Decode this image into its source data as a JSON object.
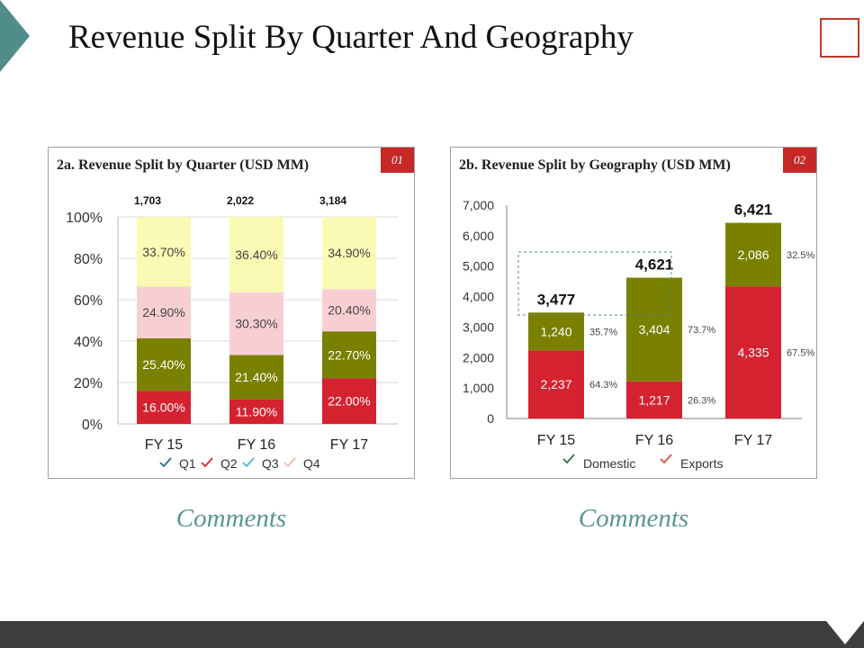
{
  "title": "Revenue Split By Quarter And Geography",
  "colors": {
    "accent_teal": "#4f8d8a",
    "badge_red": "#c62828",
    "q1": "#d52230",
    "q2": "#7a8000",
    "q3": "#f7cfd3",
    "q4": "#fafab4",
    "domestic": "#d52230",
    "exports": "#7a8000",
    "footer": "#3d3d3d"
  },
  "panels": {
    "quarter": {
      "title": "2a. Revenue Split by Quarter (USD MM)",
      "badge": "01",
      "comments": "Comments"
    },
    "geography": {
      "title": "2b. Revenue Split by Geography (USD MM)",
      "badge": "02",
      "comments": "Comments"
    }
  },
  "chart_data": [
    {
      "type": "bar",
      "stacked": "percent",
      "title": "2a. Revenue Split by Quarter (USD MM)",
      "categories": [
        "FY 15",
        "FY 16",
        "FY 17"
      ],
      "totals": [
        "1,703",
        "2,022",
        "3,184"
      ],
      "ylim": [
        0,
        100
      ],
      "yticks": [
        "0%",
        "20%",
        "40%",
        "60%",
        "80%",
        "100%"
      ],
      "grid": true,
      "legend_position": "bottom",
      "series": [
        {
          "name": "Q1",
          "values": [
            16.0,
            11.9,
            22.0
          ],
          "labels": [
            "16.00%",
            "11.90%",
            "22.00%"
          ],
          "color": "#d52230",
          "label_color": "#ffffff",
          "check_color": "#1f6e8c"
        },
        {
          "name": "Q2",
          "values": [
            25.4,
            21.4,
            22.7
          ],
          "labels": [
            "25.40%",
            "21.40%",
            "22.70%"
          ],
          "color": "#7a8000",
          "label_color": "#ffffff",
          "check_color": "#d52230"
        },
        {
          "name": "Q3",
          "values": [
            24.9,
            30.3,
            20.4
          ],
          "labels": [
            "24.90%",
            "30.30%",
            "20.40%"
          ],
          "color": "#f7cfd3",
          "label_color": "#444444",
          "check_color": "#4fb3d9"
        },
        {
          "name": "Q4",
          "values": [
            33.7,
            36.4,
            34.9
          ],
          "labels": [
            "33.70%",
            "36.40%",
            "34.90%"
          ],
          "color": "#fafab4",
          "label_color": "#444444",
          "check_color": "#f0b8a0"
        }
      ]
    },
    {
      "type": "bar",
      "stacked": "absolute",
      "title": "2b. Revenue Split by Geography (USD MM)",
      "categories": [
        "FY 15",
        "FY 16",
        "FY 17"
      ],
      "totals": [
        "3,477",
        "4,621",
        "6,421"
      ],
      "ylim": [
        0,
        7000
      ],
      "yticks": [
        "0",
        "1,000",
        "2,000",
        "3,000",
        "4,000",
        "5,000",
        "6,000",
        "7,000"
      ],
      "grid": false,
      "legend_position": "bottom",
      "series": [
        {
          "name": "Domestic",
          "values": [
            2237,
            1217,
            4335
          ],
          "labels": [
            "2,237",
            "1,217",
            "4,335"
          ],
          "shares": [
            "64.3%",
            "26.3%",
            "67.5%"
          ],
          "color": "#d52230",
          "check_color": "#2e6b3c"
        },
        {
          "name": "Exports",
          "values": [
            1240,
            3404,
            2086
          ],
          "labels": [
            "1,240",
            "3,404",
            "2,086"
          ],
          "shares": [
            "35.7%",
            "73.7%",
            "32.5%"
          ],
          "color": "#7a8000",
          "check_color": "#d9543a"
        }
      ]
    }
  ]
}
